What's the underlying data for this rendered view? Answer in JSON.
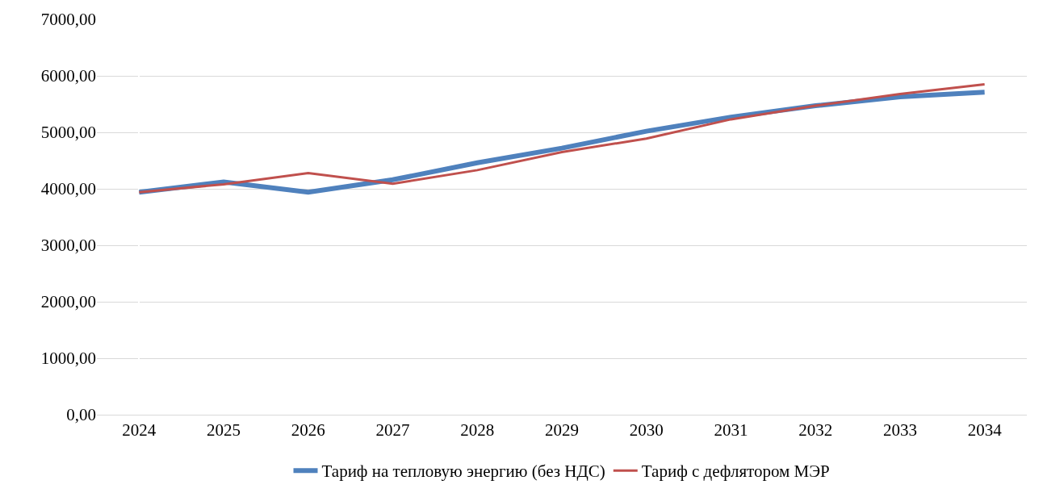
{
  "chart_data": {
    "type": "line",
    "categories": [
      "2024",
      "2025",
      "2026",
      "2027",
      "2028",
      "2029",
      "2030",
      "2031",
      "2032",
      "2033",
      "2034"
    ],
    "series": [
      {
        "name": "Тариф на тепловую энергию (без НДС)",
        "color": "#4f81bd",
        "values": [
          3940,
          4120,
          3940,
          4160,
          4460,
          4720,
          5020,
          5270,
          5470,
          5630,
          5710
        ]
      },
      {
        "name": "Тариф с дефлятором МЭР",
        "color": "#c0504d",
        "values": [
          3940,
          4080,
          4280,
          4090,
          4330,
          4650,
          4890,
          5230,
          5470,
          5680,
          5850
        ]
      }
    ],
    "ylim": [
      0,
      7000
    ],
    "yticks": [
      {
        "value": 0,
        "label": "0,00"
      },
      {
        "value": 1000,
        "label": "1000,00"
      },
      {
        "value": 2000,
        "label": "2000,00"
      },
      {
        "value": 3000,
        "label": "3000,00"
      },
      {
        "value": 4000,
        "label": "4000,00"
      },
      {
        "value": 5000,
        "label": "5000,00"
      },
      {
        "value": 6000,
        "label": "6000,00"
      },
      {
        "value": 7000,
        "label": "7000,00"
      }
    ],
    "grid": "y",
    "legend": "bottom",
    "marker": "none",
    "line_style": "solid"
  }
}
